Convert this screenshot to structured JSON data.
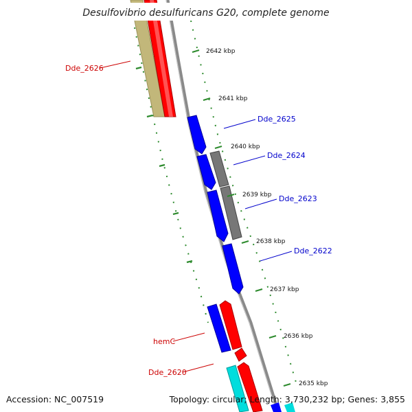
{
  "title": "Desulfovibrio desulfuricans G20, complete genome",
  "footer": {
    "accession": "Accession: NC_007519",
    "topology": "Topology: circular; Length: 3,730,232 bp; Genes: 3,855"
  },
  "colors": {
    "forward_gene": "#ff0000",
    "reverse_gene": "#0000ff",
    "rna_gene": "#00cccc",
    "other_feature": "#777777",
    "tan_feature": "#c2b77a",
    "tick": "#2e8b2e",
    "backbone": "#888888",
    "label_red": "#cc0000",
    "label_blue": "#0000cc"
  },
  "kbp_ticks": [
    {
      "label": "2642 kbp"
    },
    {
      "label": "2641 kbp"
    },
    {
      "label": "2640 kbp"
    },
    {
      "label": "2639 kbp"
    },
    {
      "label": "2638 kbp"
    },
    {
      "label": "2637 kbp"
    },
    {
      "label": "2636 kbp"
    },
    {
      "label": "2635 kbp"
    }
  ],
  "gene_labels": [
    {
      "text": "Dde_2626",
      "color": "#cc0000"
    },
    {
      "text": "Dde_2625",
      "color": "#0000cc"
    },
    {
      "text": "Dde_2624",
      "color": "#0000cc"
    },
    {
      "text": "Dde_2623",
      "color": "#0000cc"
    },
    {
      "text": "Dde_2622",
      "color": "#0000cc"
    },
    {
      "text": "hemC",
      "color": "#cc0000"
    },
    {
      "text": "Dde_2620",
      "color": "#cc0000"
    }
  ]
}
